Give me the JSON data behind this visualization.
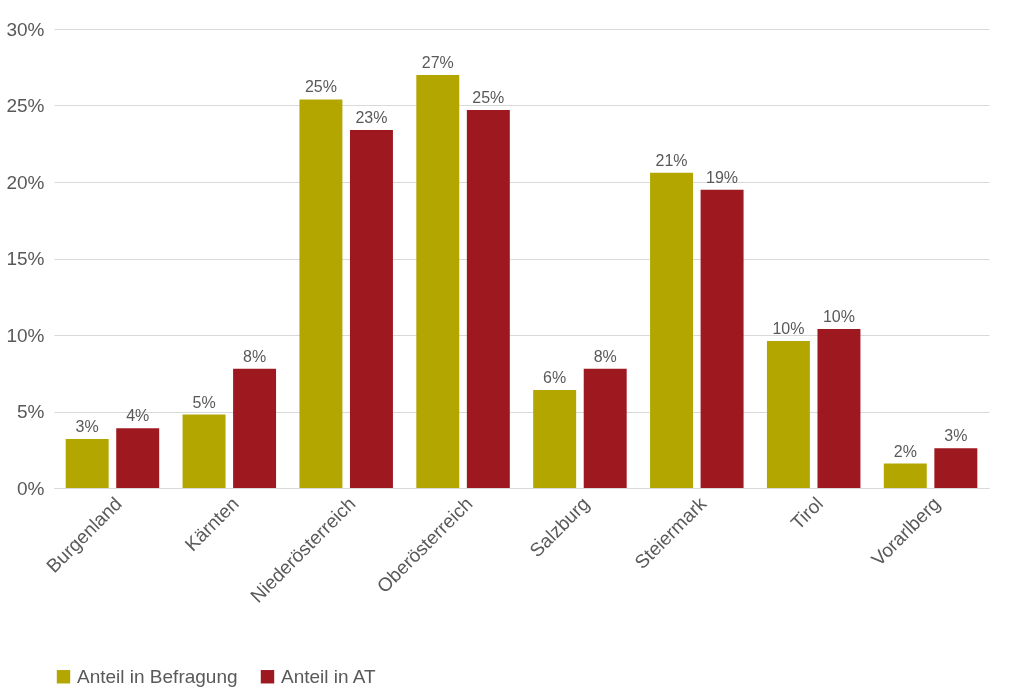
{
  "chart_data": {
    "type": "bar",
    "categories": [
      "Burgenland",
      "Kärnten",
      "Niederösterreich",
      "Oberösterreich",
      "Salzburg",
      "Steiermark",
      "Tirol",
      "Vorarlberg"
    ],
    "series": [
      {
        "name": "Anteil in Befragung",
        "color": "#b3a600",
        "values": [
          3.2,
          4.8,
          25.4,
          27.0,
          6.4,
          20.6,
          9.6,
          1.6
        ],
        "value_labels": [
          "3%",
          "5%",
          "25%",
          "27%",
          "6%",
          "21%",
          "10%",
          "2%"
        ]
      },
      {
        "name": "Anteil in AT",
        "color": "#9e1820",
        "values": [
          3.9,
          7.8,
          23.4,
          24.7,
          7.8,
          19.5,
          10.4,
          2.6
        ],
        "value_labels": [
          "4%",
          "8%",
          "23%",
          "25%",
          "8%",
          "19%",
          "10%",
          "3%"
        ]
      }
    ],
    "ylim": [
      0,
      30
    ],
    "yticks": [
      {
        "value": 0,
        "label": "0%"
      },
      {
        "value": 5,
        "label": "5%"
      },
      {
        "value": 10,
        "label": "10%"
      },
      {
        "value": 15,
        "label": "15%"
      },
      {
        "value": 20,
        "label": "20%"
      },
      {
        "value": 25,
        "label": "25%"
      },
      {
        "value": 30,
        "label": "30%"
      }
    ],
    "grid": "y",
    "legend": "bottom"
  }
}
